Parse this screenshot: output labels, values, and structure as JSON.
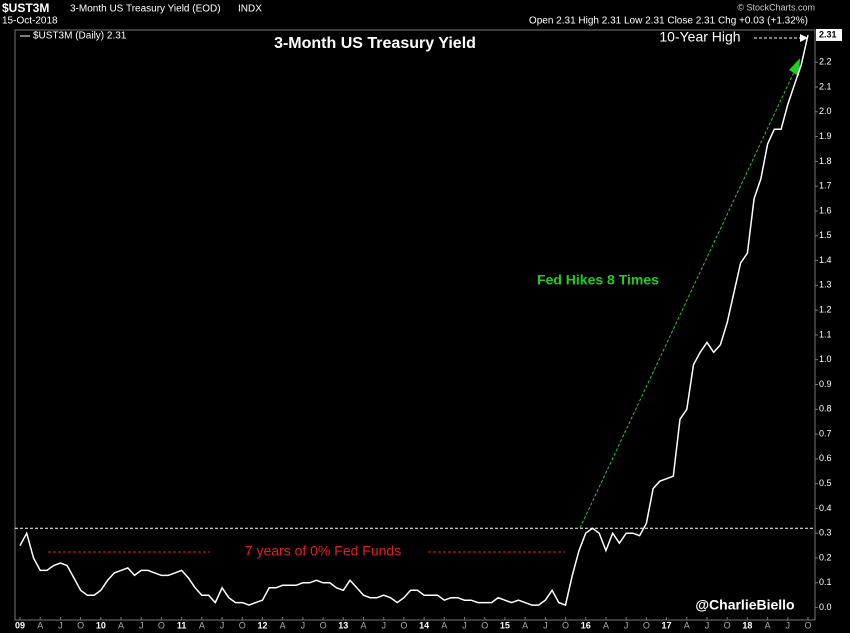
{
  "chart_data": {
    "type": "line",
    "header": {
      "symbol": "$UST3M",
      "name": "3-Month US Treasury Yield (EOD)",
      "exchange": "INDX",
      "date": "15-Oct-2018",
      "quote": "Open 2.31 High 2.31 Low 2.31 Close 2.31 Chg +0.03 (+1.32%)",
      "copyright": "© StockCharts.com"
    },
    "title": "3-Month US Treasury Yield",
    "annotations": [
      "10-Year High",
      "Fed Hikes 8 Times",
      "7 years of 0% Fed Funds",
      "@CharlieBiello"
    ],
    "last_label": "2.31",
    "reference_line": 0.32,
    "categories": [
      "09",
      null,
      null,
      "A",
      null,
      null,
      "J",
      null,
      null,
      "O",
      null,
      null,
      "10",
      null,
      null,
      "A",
      null,
      null,
      "J",
      null,
      null,
      "O",
      null,
      null,
      "11",
      null,
      null,
      "A",
      null,
      null,
      "J",
      null,
      null,
      "O",
      null,
      null,
      "12",
      null,
      null,
      "A",
      null,
      null,
      "J",
      null,
      null,
      "O",
      null,
      null,
      "13",
      null,
      null,
      "A",
      null,
      null,
      "J",
      null,
      null,
      "O",
      null,
      null,
      "14",
      null,
      null,
      "A",
      null,
      null,
      "J",
      null,
      null,
      "O",
      null,
      null,
      "15",
      null,
      null,
      "A",
      null,
      null,
      "J",
      null,
      null,
      "O",
      null,
      null,
      "16",
      null,
      null,
      "A",
      null,
      null,
      "J",
      null,
      null,
      "O",
      null,
      null,
      "17",
      null,
      null,
      "A",
      null,
      null,
      "J",
      null,
      null,
      "O",
      null,
      null,
      "18",
      null,
      null,
      "A",
      null,
      null,
      "J",
      null,
      null,
      "O"
    ],
    "series": [
      {
        "name": "$UST3M (Daily) 2.31",
        "color": "#ffffff",
        "values": [
          0.25,
          0.3,
          0.2,
          0.15,
          0.15,
          0.17,
          0.18,
          0.17,
          0.12,
          0.07,
          0.05,
          0.05,
          0.07,
          0.11,
          0.14,
          0.15,
          0.16,
          0.13,
          0.15,
          0.15,
          0.14,
          0.13,
          0.13,
          0.14,
          0.15,
          0.12,
          0.08,
          0.05,
          0.05,
          0.02,
          0.08,
          0.04,
          0.02,
          0.02,
          0.01,
          0.02,
          0.03,
          0.08,
          0.08,
          0.09,
          0.09,
          0.09,
          0.1,
          0.1,
          0.11,
          0.1,
          0.1,
          0.08,
          0.07,
          0.11,
          0.08,
          0.05,
          0.04,
          0.04,
          0.05,
          0.04,
          0.02,
          0.04,
          0.07,
          0.07,
          0.05,
          0.05,
          0.05,
          0.03,
          0.04,
          0.04,
          0.03,
          0.03,
          0.02,
          0.02,
          0.02,
          0.04,
          0.03,
          0.02,
          0.03,
          0.02,
          0.01,
          0.01,
          0.03,
          0.07,
          0.02,
          0.01,
          0.13,
          0.23,
          0.3,
          0.32,
          0.3,
          0.23,
          0.3,
          0.26,
          0.3,
          0.3,
          0.29,
          0.34,
          0.48,
          0.51,
          0.52,
          0.53,
          0.76,
          0.8,
          0.98,
          1.03,
          1.07,
          1.03,
          1.06,
          1.15,
          1.27,
          1.39,
          1.43,
          1.65,
          1.73,
          1.87,
          1.93,
          1.93,
          2.03,
          2.11,
          2.19,
          2.31
        ]
      }
    ],
    "ylim": [
      -0.05,
      2.33
    ],
    "yticks": [
      {
        "value": 0,
        "label": "0.0"
      },
      0.1,
      0.2,
      0.3,
      0.4,
      0.5,
      0.6,
      0.7,
      0.8,
      0.9,
      {
        "value": 1,
        "label": "1.0"
      },
      1.1,
      1.2,
      1.3,
      1.4,
      1.5,
      1.6,
      1.7,
      1.8,
      1.9,
      {
        "value": 2,
        "label": "2.0"
      },
      2.1,
      2.2
    ]
  }
}
